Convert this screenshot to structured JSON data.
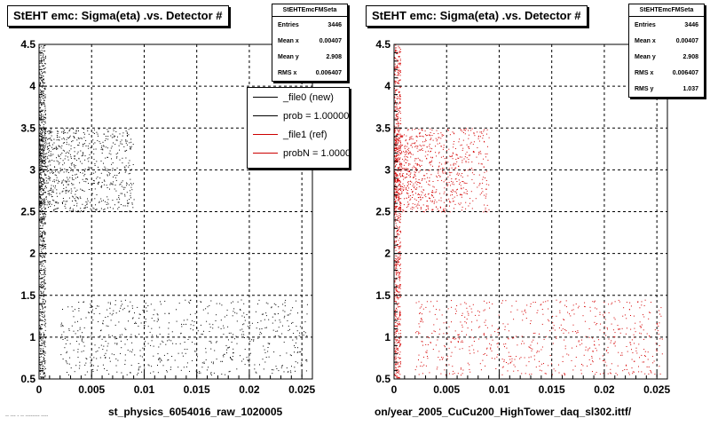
{
  "footnote": "-- --- - -- -------- ----",
  "chart_data": [
    {
      "type": "scatter",
      "title": "StEHT emc: Sigma(eta) .vs. Detector #",
      "xlabel": "st_physics_6054016_raw_1020005",
      "ylabel": "",
      "xlim": [
        0,
        0.026
      ],
      "ylim": [
        0.5,
        4.5
      ],
      "xticks": [
        "0",
        "0.005",
        "0.01",
        "0.015",
        "0.02",
        "0.025"
      ],
      "yticks": [
        "0.5",
        "1",
        "1.5",
        "2",
        "2.5",
        "3",
        "3.5",
        "4",
        "4.5"
      ],
      "grid": true,
      "marker_color": "#000000",
      "series": [
        {
          "region": "column",
          "x_range": [
            0,
            0.0006
          ],
          "y_range": [
            0.5,
            4.5
          ]
        },
        {
          "region": "cluster",
          "x_range": [
            0,
            0.009
          ],
          "y_range": [
            2.5,
            3.5
          ]
        },
        {
          "region": "band",
          "x_range": [
            0.002,
            0.0255
          ],
          "y_range": [
            0.55,
            1.45
          ]
        }
      ],
      "stats": {
        "name": "StEHTEmcFMSeta",
        "rows": [
          {
            "label": "Entries",
            "value": "3446"
          },
          {
            "label": "Mean x",
            "value": "0.00407"
          },
          {
            "label": "Mean y",
            "value": "2.908"
          },
          {
            "label": "RMS x",
            "value": "0.006407"
          }
        ]
      },
      "legend": {
        "placement": "top-right",
        "entries": [
          {
            "label": "_file0 (new)",
            "color": "#000000"
          },
          {
            "label": "prob = 1.000000",
            "color": "#000000"
          },
          {
            "label": "_file1 (ref)",
            "color": "#cc0000"
          },
          {
            "label": "probN = 1.000000",
            "color": "#cc0000"
          }
        ]
      }
    },
    {
      "type": "scatter",
      "title": "StEHT emc: Sigma(eta) .vs. Detector #",
      "xlabel": "on/year_2005_CuCu200_HighTower_daq_sl302.ittf/",
      "ylabel": "",
      "xlim": [
        0,
        0.026
      ],
      "ylim": [
        0.5,
        4.5
      ],
      "xticks": [
        "0",
        "0.005",
        "0.01",
        "0.015",
        "0.02",
        "0.025"
      ],
      "yticks": [
        "0.5",
        "1",
        "1.5",
        "2",
        "2.5",
        "3",
        "3.5",
        "4",
        "4.5"
      ],
      "grid": true,
      "marker_color": "#d40000",
      "series": [
        {
          "region": "column",
          "x_range": [
            0,
            0.0006
          ],
          "y_range": [
            0.5,
            4.5
          ]
        },
        {
          "region": "cluster",
          "x_range": [
            0,
            0.009
          ],
          "y_range": [
            2.5,
            3.5
          ]
        },
        {
          "region": "band",
          "x_range": [
            0.002,
            0.0255
          ],
          "y_range": [
            0.55,
            1.45
          ]
        }
      ],
      "stats": {
        "name": "StEHTEmcFMSeta",
        "rows": [
          {
            "label": "Entries",
            "value": "3446"
          },
          {
            "label": "Mean x",
            "value": "0.00407"
          },
          {
            "label": "Mean y",
            "value": "2.908"
          },
          {
            "label": "RMS x",
            "value": "0.006407"
          },
          {
            "label": "RMS y",
            "value": "1.037"
          }
        ]
      }
    }
  ]
}
